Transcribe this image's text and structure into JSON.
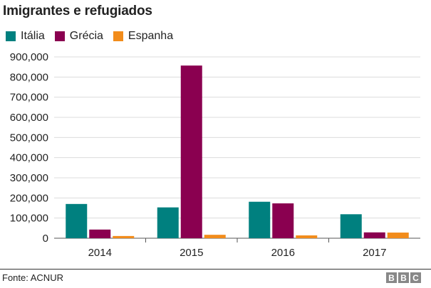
{
  "chart_data": {
    "type": "bar",
    "title": "Imigrantes e refugiados",
    "categories": [
      "2014",
      "2015",
      "2016",
      "2017"
    ],
    "series": [
      {
        "name": "Itália",
        "color": "#00807f",
        "values": [
          170000,
          153000,
          181000,
          119000
        ]
      },
      {
        "name": "Grécia",
        "color": "#8a0050",
        "values": [
          43000,
          857000,
          173000,
          29000
        ]
      },
      {
        "name": "Espanha",
        "color": "#f28c1b",
        "values": [
          11000,
          17000,
          14000,
          28000
        ]
      }
    ],
    "yticks": [
      0,
      100000,
      200000,
      300000,
      400000,
      500000,
      600000,
      700000,
      800000,
      900000
    ],
    "ytick_labels": [
      "0",
      "100,000",
      "200,000",
      "300,000",
      "400,000",
      "500,000",
      "600,000",
      "700,000",
      "800,000",
      "900,000"
    ],
    "ylim": [
      0,
      900000
    ],
    "xlabel": "",
    "ylabel": "",
    "grid": true,
    "legend_position": "top-left"
  },
  "footer": {
    "source": "Fonte: ACNUR",
    "logo_letters": [
      "B",
      "B",
      "C"
    ]
  }
}
